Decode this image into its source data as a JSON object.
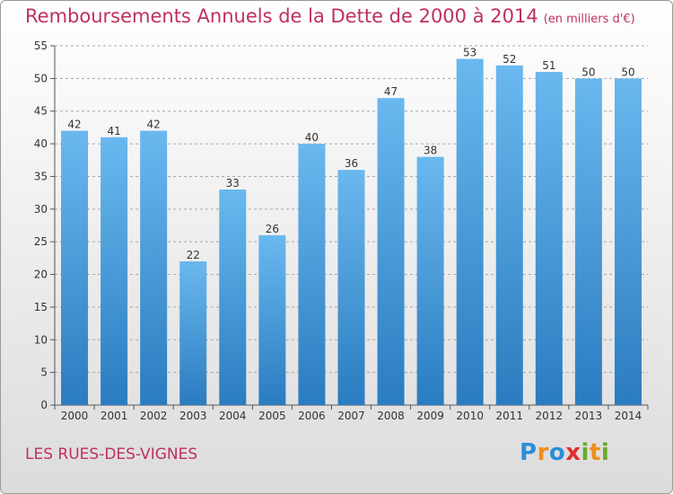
{
  "title": "Remboursements Annuels de la Dette de 2000 à 2014",
  "unit_label": "(en milliers d'€)",
  "commune": "LES RUES-DES-VIGNES",
  "logo": {
    "text": "Proxiti",
    "letters": [
      "P",
      "r",
      "o",
      "x",
      "i",
      "t",
      "i"
    ],
    "colors": [
      "#2a8fd8",
      "#f08c1c",
      "#2a8fd8",
      "#e52e2e",
      "#6aaa2a",
      "#f08c1c",
      "#6aaa2a"
    ]
  },
  "colors": {
    "bar_top": "#6ab8ef",
    "bar_bottom": "#2a7cc0",
    "grid": "#a8a8a8",
    "accent": "#c0305a"
  },
  "chart_data": {
    "type": "bar",
    "title": "Remboursements Annuels de la Dette de 2000 à 2014",
    "xlabel": "",
    "ylabel": "en milliers d'€",
    "categories": [
      "2000",
      "2001",
      "2002",
      "2003",
      "2004",
      "2005",
      "2006",
      "2007",
      "2008",
      "2009",
      "2010",
      "2011",
      "2012",
      "2013",
      "2014"
    ],
    "values": [
      42,
      41,
      42,
      22,
      33,
      26,
      40,
      36,
      47,
      38,
      53,
      52,
      51,
      50,
      50
    ],
    "ylim": [
      0,
      55
    ],
    "yticks": [
      0,
      5,
      10,
      15,
      20,
      25,
      30,
      35,
      40,
      45,
      50,
      55
    ],
    "grid": true
  }
}
